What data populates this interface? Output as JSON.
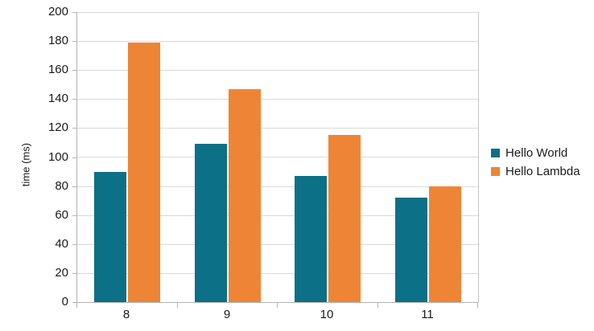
{
  "chart_data": {
    "type": "bar",
    "title": "",
    "xlabel": "",
    "ylabel": "time (ms)",
    "categories": [
      "8",
      "9",
      "10",
      "11"
    ],
    "series": [
      {
        "name": "Hello World",
        "color": "#0c7086",
        "values": [
          90,
          109,
          87,
          72
        ]
      },
      {
        "name": "Hello Lambda",
        "color": "#ee8536",
        "values": [
          179,
          147,
          115,
          80
        ]
      }
    ],
    "ylim": [
      0,
      200
    ],
    "yticks": [
      0,
      20,
      40,
      60,
      80,
      100,
      120,
      140,
      160,
      180,
      200
    ],
    "grid": "horizontal",
    "legend_position": "right",
    "axis_color": "#b3b3b3",
    "grid_color": "#d9d9d9",
    "text_color": "#1a1a1a",
    "background": "#ffffff"
  }
}
